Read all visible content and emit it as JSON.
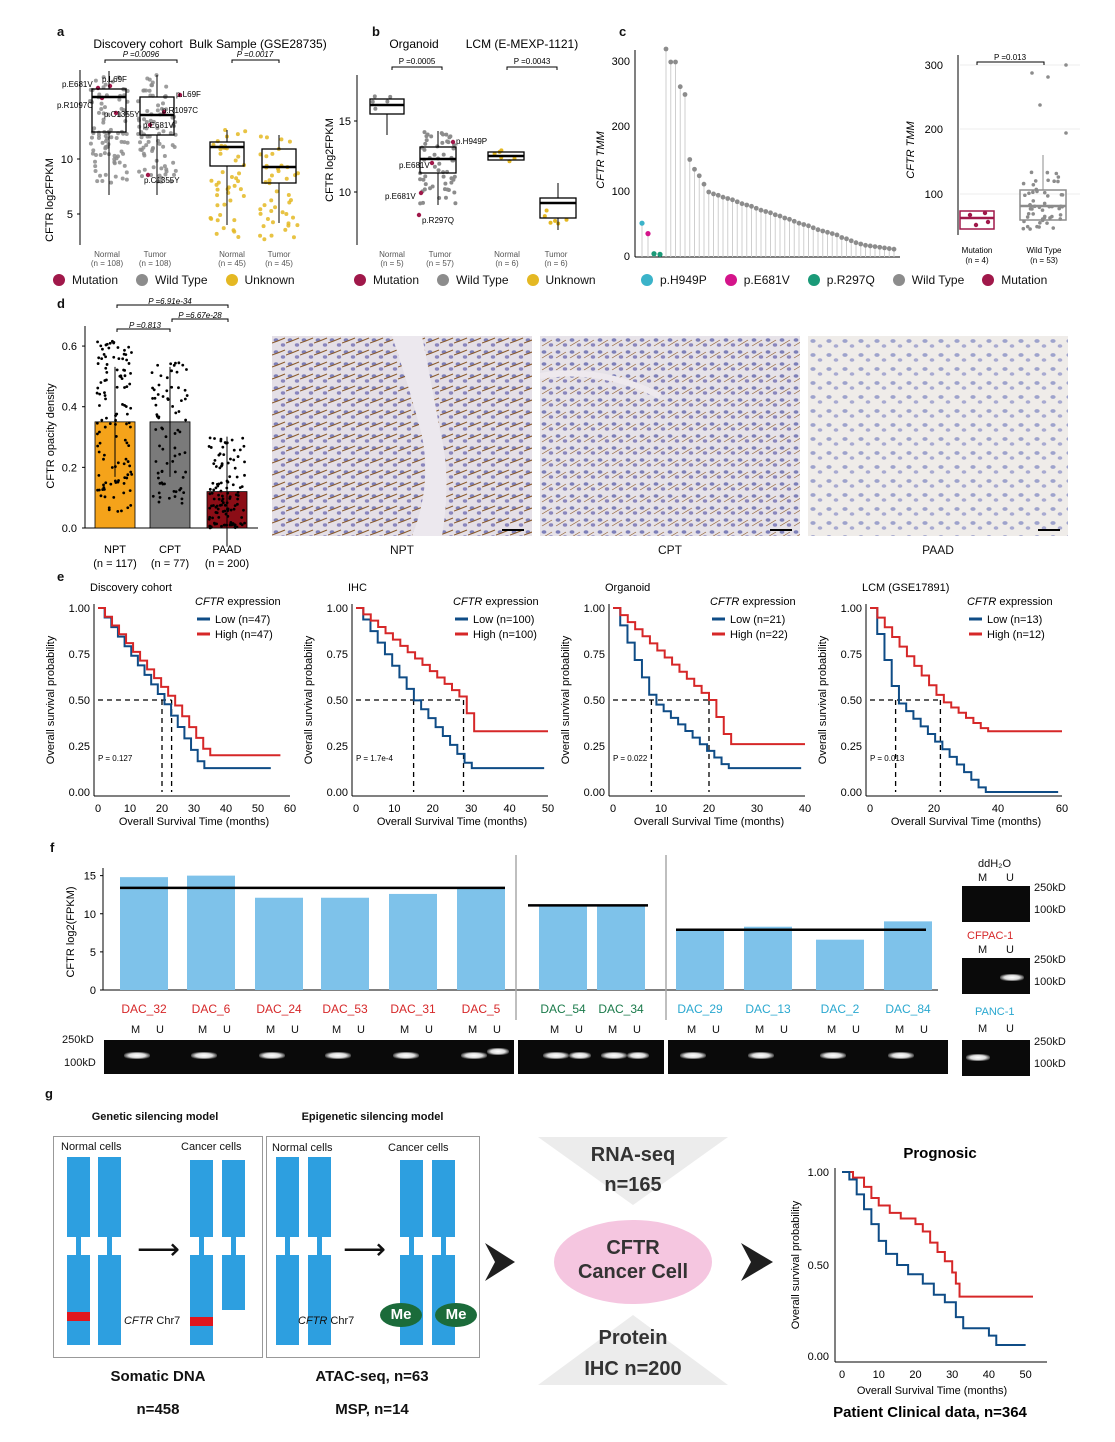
{
  "panels": {
    "a": "a",
    "b": "b",
    "c": "c",
    "d": "d",
    "e": "e",
    "f": "f",
    "g": "g"
  },
  "panel_a": {
    "titles": [
      "Discovery cohort",
      "Bulk Sample (GSE28735)"
    ],
    "ylabel": "CFTR log2FPKM",
    "pvalues": [
      "P =0.0096",
      "P =0.0017"
    ],
    "yticks": [
      "5",
      "10"
    ],
    "groups": [
      "Normal\n(n = 108)",
      "Tumor\n(n = 108)",
      "Normal\n(n = 45)",
      "Tumor\n(n = 45)"
    ],
    "group_names": [
      "Normal",
      "Tumor",
      "Normal",
      "Tumor"
    ],
    "group_ns": [
      "(n = 108)",
      "(n = 108)",
      "(n = 45)",
      "(n = 45)"
    ],
    "mutation_labels": [
      "p.E681V",
      "p.L69F",
      "p.R1097C",
      "p.C1355Y",
      "p.L69F",
      "p.R1097C",
      "p.E681V",
      "p.C1355Y"
    ],
    "legend": [
      {
        "label": "Mutation",
        "color": "#a0184a"
      },
      {
        "label": "Wild Type",
        "color": "#8c8c8c"
      },
      {
        "label": "Unknown",
        "color": "#e4b823"
      }
    ]
  },
  "panel_b": {
    "titles": [
      "Organoid",
      "LCM (E-MEXP-1121)"
    ],
    "ylabel": "CFTR log2FPKM",
    "pvalues": [
      "P =0.0005",
      "P =0.0043"
    ],
    "yticks": [
      "10",
      "15"
    ],
    "group_names": [
      "Normal",
      "Tumor",
      "Normal",
      "Tumor"
    ],
    "group_ns": [
      "(n = 5)",
      "(n = 57)",
      "(n = 6)",
      "(n = 6)"
    ],
    "mutation_labels": [
      "p.H949P",
      "p.E681V",
      "p.E681V",
      "p.R297Q"
    ],
    "legend": [
      {
        "label": "Mutation",
        "color": "#a0184a"
      },
      {
        "label": "Wild Type",
        "color": "#8c8c8c"
      },
      {
        "label": "Unknown",
        "color": "#e4b823"
      }
    ]
  },
  "panel_c": {
    "ylabel": "CFTR TMM",
    "yticks": [
      "0",
      "100",
      "200",
      "300"
    ],
    "inset_ylabel": "CFTR TMM",
    "inset_yticks": [
      "100",
      "200",
      "300"
    ],
    "inset_pvalue": "P =0.013",
    "inset_groups": [
      "Mutation",
      "Wild Type"
    ],
    "inset_ns": [
      "(n = 4)",
      "(n = 53)"
    ],
    "legend": [
      {
        "label": "p.H949P",
        "color": "#3bb3c9"
      },
      {
        "label": "p.E681V",
        "color": "#d4148a"
      },
      {
        "label": "p.R297Q",
        "color": "#1a9a78"
      },
      {
        "label": "Wild Type",
        "color": "#8c8c8c"
      },
      {
        "label": "Mutation",
        "color": "#a0184a"
      }
    ]
  },
  "panel_d": {
    "ylabel": "CFTR opacity density",
    "yticks": [
      "0.0",
      "0.2",
      "0.4",
      "0.6"
    ],
    "pvalues": [
      "P =6.91e-34",
      "P =0.813",
      "P =6.67e-28"
    ],
    "ihc_labels": [
      "NPT",
      "CPT",
      "PAAD"
    ],
    "chart_data": {
      "type": "bar",
      "categories": [
        "NPT",
        "CPT",
        "PAAD"
      ],
      "category_ns": [
        "(n = 117)",
        "(n = 77)",
        "(n = 200)"
      ],
      "values": [
        0.35,
        0.35,
        0.12
      ],
      "ylabel": "CFTR opacity density",
      "ylim": [
        0,
        0.65
      ],
      "colors": [
        "#f5a31a",
        "#7a7a7a",
        "#8b0d16"
      ]
    }
  },
  "panel_e": {
    "xlabel": "Overall Survival Time (months)",
    "ylabel": "Overall survival probability",
    "yticks": [
      "0.00",
      "0.25",
      "0.50",
      "0.75",
      "1.00"
    ],
    "legend_title": "expression",
    "legend_gene": "CFTR",
    "plots": [
      {
        "title": "Discovery cohort",
        "low": "Low (n=47)",
        "high": "High (n=47)",
        "p": "P = 0.127",
        "xticks": [
          "0",
          "10",
          "20",
          "30",
          "40",
          "50",
          "60"
        ],
        "xmax": 60,
        "median_low": 20,
        "median_high": 23
      },
      {
        "title": "IHC",
        "low": "Low (n=100)",
        "high": "High (n=100)",
        "p": "P = 1.7e-4",
        "xticks": [
          "0",
          "10",
          "20",
          "30",
          "40",
          "50"
        ],
        "xmax": 50,
        "median_low": 15,
        "median_high": 28
      },
      {
        "title": "Organoid",
        "low": "Low (n=21)",
        "high": "High (n=22)",
        "p": "P = 0.022",
        "xticks": [
          "0",
          "10",
          "20",
          "30",
          "40"
        ],
        "xmax": 40,
        "median_low": 8,
        "median_high": 20
      },
      {
        "title": "LCM (GSE17891)",
        "low": "Low (n=13)",
        "high": "High (n=12)",
        "p": "P = 0.013",
        "xticks": [
          "0",
          "20",
          "40",
          "60"
        ],
        "xmax": 60,
        "median_low": 8,
        "median_high": 22
      }
    ],
    "colors": {
      "low": "#0f4c86",
      "high": "#d62728"
    }
  },
  "panel_f": {
    "ylabel": "CFTR log2(FPKM)",
    "yticks": [
      "0",
      "5",
      "10",
      "15"
    ],
    "chart_data": {
      "type": "bar",
      "categories": [
        "DAC_32",
        "DAC_6",
        "DAC_24",
        "DAC_53",
        "DAC_31",
        "DAC_5",
        "DAC_54",
        "DAC_34",
        "DAC_29",
        "DAC_13",
        "DAC_2",
        "DAC_84"
      ],
      "values": [
        14.8,
        15.0,
        12.1,
        12.1,
        12.6,
        13.4,
        11.2,
        11.0,
        7.8,
        8.3,
        6.6,
        9.0
      ],
      "group_means": [
        13.4,
        11.1,
        7.9
      ],
      "ylim": [
        0,
        16
      ]
    },
    "sample_colors": [
      "#d62728",
      "#d62728",
      "#d62728",
      "#d62728",
      "#d62728",
      "#d62728",
      "#1a7a4a",
      "#1a7a4a",
      "#2aa8d0",
      "#2aa8d0",
      "#2aa8d0",
      "#2aa8d0"
    ],
    "mu": [
      "M",
      "U"
    ],
    "markers": [
      "250kD",
      "100kD"
    ],
    "controls": [
      {
        "name": "ddH₂O",
        "color": "#111111"
      },
      {
        "name": "CFPAC-1",
        "color": "#d62728"
      },
      {
        "name": "PANC-1",
        "color": "#2aa8d0"
      }
    ]
  },
  "panel_g": {
    "genetic_title": "Genetic silencing model",
    "epigenetic_title": "Epigenetic silencing model",
    "normal_cells": "Normal cells",
    "cancer_cells": "Cancer cells",
    "gene": "CFTR",
    "chr": "Chr7",
    "me": "Me",
    "somatic": "Somatic DNA",
    "n458": "n=458",
    "atac": "ATAC-seq, n=63",
    "msp": "MSP, n=14",
    "rnaseq": "RNA-seq",
    "n165": "n=165",
    "center": "CFTR\nCancer Cell",
    "center_line1": "CFTR",
    "center_line2": "Cancer Cell",
    "protein": "Protein",
    "ihc200": "IHC n=200",
    "prognosis_title": "Prognosic",
    "prognosis_ylabel": "Overall survival probability",
    "prognosis_xlabel": "Overall Survival Time (months)",
    "prognosis_yticks": [
      "0.00",
      "0.50",
      "1.00"
    ],
    "prognosis_xticks": [
      "0",
      "10",
      "20",
      "30",
      "40",
      "50"
    ],
    "clinical": "Patient Clinical data, n=364"
  }
}
